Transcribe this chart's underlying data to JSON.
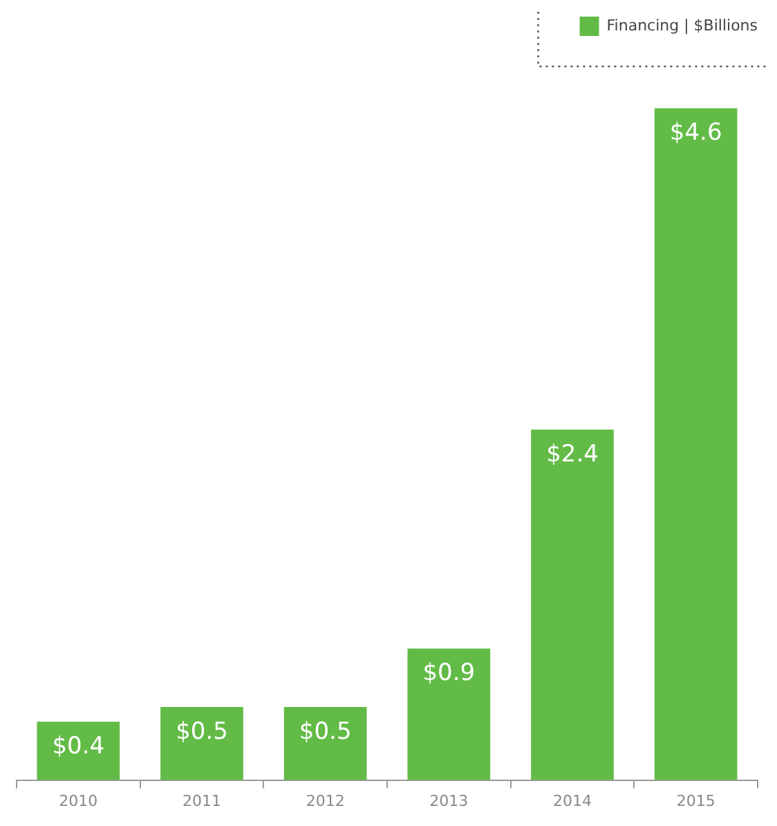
{
  "chart_data": {
    "type": "bar",
    "categories": [
      "2010",
      "2011",
      "2012",
      "2013",
      "2014",
      "2015"
    ],
    "series": [
      {
        "name": "Financing | $Billions",
        "color": "#62bb46",
        "values": [
          0.4,
          0.5,
          0.5,
          0.9,
          2.4,
          4.6
        ],
        "value_labels": [
          "$0.4",
          "$0.5",
          "$0.5",
          "$0.9",
          "$2.4",
          "$4.6"
        ]
      }
    ],
    "legend": "top right",
    "tick_labels": "x"
  }
}
